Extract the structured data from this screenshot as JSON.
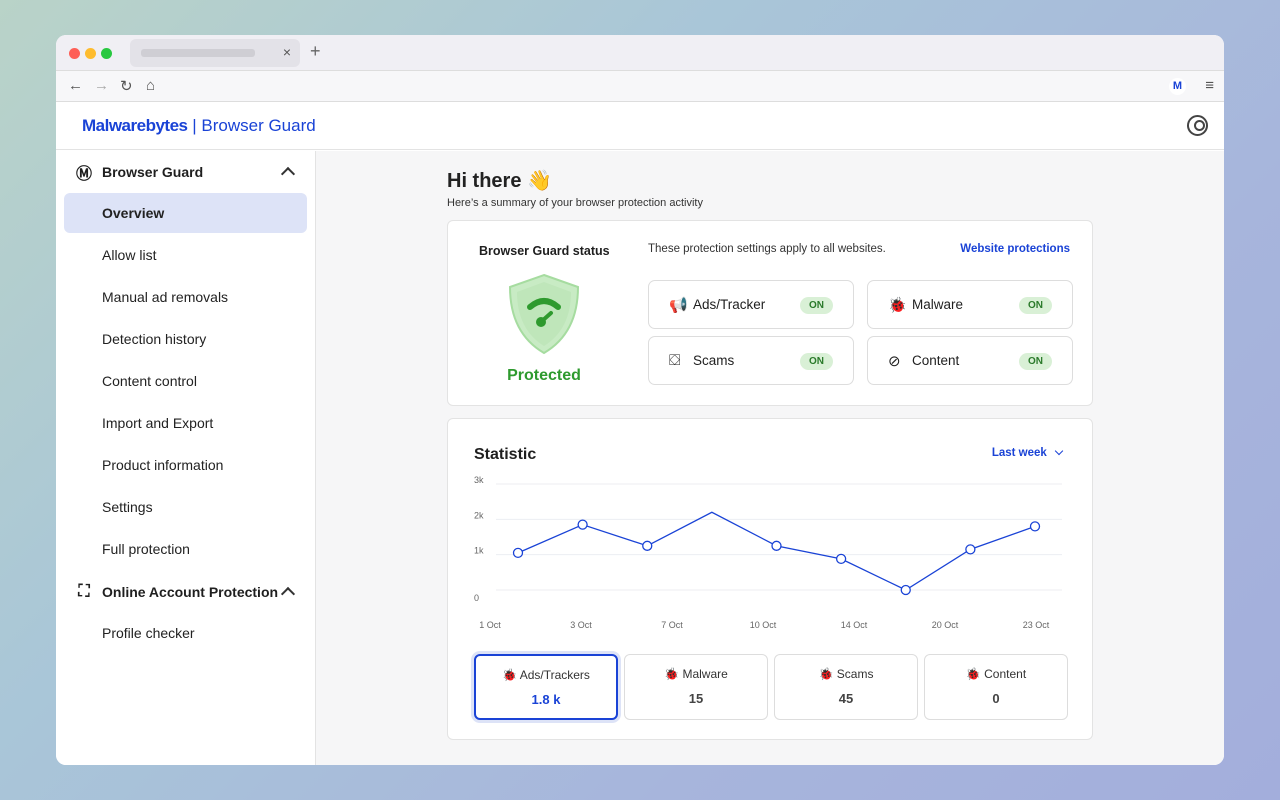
{
  "browser": {
    "tab_close": "×",
    "new_tab": "+"
  },
  "header": {
    "brand": "Malwarebytes",
    "divider": "|",
    "product": "Browser Guard"
  },
  "sidebar": {
    "sections": [
      {
        "label": "Browser Guard",
        "items": [
          "Overview",
          "Allow list",
          "Manual ad removals",
          "Detection history",
          "Content control",
          "Import and Export",
          "Product information",
          "Settings",
          "Full protection"
        ]
      },
      {
        "label": "Online Account Protection",
        "items": [
          "Profile checker"
        ]
      }
    ],
    "active": "Overview"
  },
  "main": {
    "greeting": "Hi there 👋",
    "subtitle": "Here’s a summary of your browser protection activity",
    "status": {
      "title": "Browser Guard status",
      "state": "Protected",
      "note": "These protection settings apply to all websites.",
      "link": "Website protections",
      "protections": [
        {
          "label": "Ads/Tracker",
          "state": "ON",
          "icon": "megaphone-icon"
        },
        {
          "label": "Malware",
          "state": "ON",
          "icon": "bug-icon"
        },
        {
          "label": "Scams",
          "state": "ON",
          "icon": "hook-icon"
        },
        {
          "label": "Content",
          "state": "ON",
          "icon": "eye-off-icon"
        }
      ]
    },
    "statistic": {
      "title": "Statistic",
      "range": "Last week",
      "cards": [
        {
          "label": "Ads/Trackers",
          "value": "1.8 k"
        },
        {
          "label": "Malware",
          "value": "15"
        },
        {
          "label": "Scams",
          "value": "45"
        },
        {
          "label": "Content",
          "value": "0"
        }
      ]
    }
  },
  "colors": {
    "accent": "#1a43d6",
    "protected": "#2e9a2e",
    "on_bg": "#d9f0d6"
  },
  "chart_data": {
    "type": "line",
    "title": "",
    "xlabel": "",
    "ylabel": "",
    "x_tick_labels": [
      "1 Oct",
      "3 Oct",
      "7 Oct",
      "10 Oct",
      "14 Oct",
      "20 Oct",
      "23 Oct"
    ],
    "y_tick_labels": [
      "0",
      "1k",
      "2k",
      "3k"
    ],
    "ylim": [
      0,
      3000
    ],
    "grid": true,
    "values": [
      1050,
      1850,
      1250,
      2200,
      1250,
      880,
      0,
      1150,
      1800
    ],
    "markers": [
      true,
      true,
      true,
      false,
      true,
      true,
      true,
      true,
      true
    ],
    "color": "#1a43d6"
  }
}
